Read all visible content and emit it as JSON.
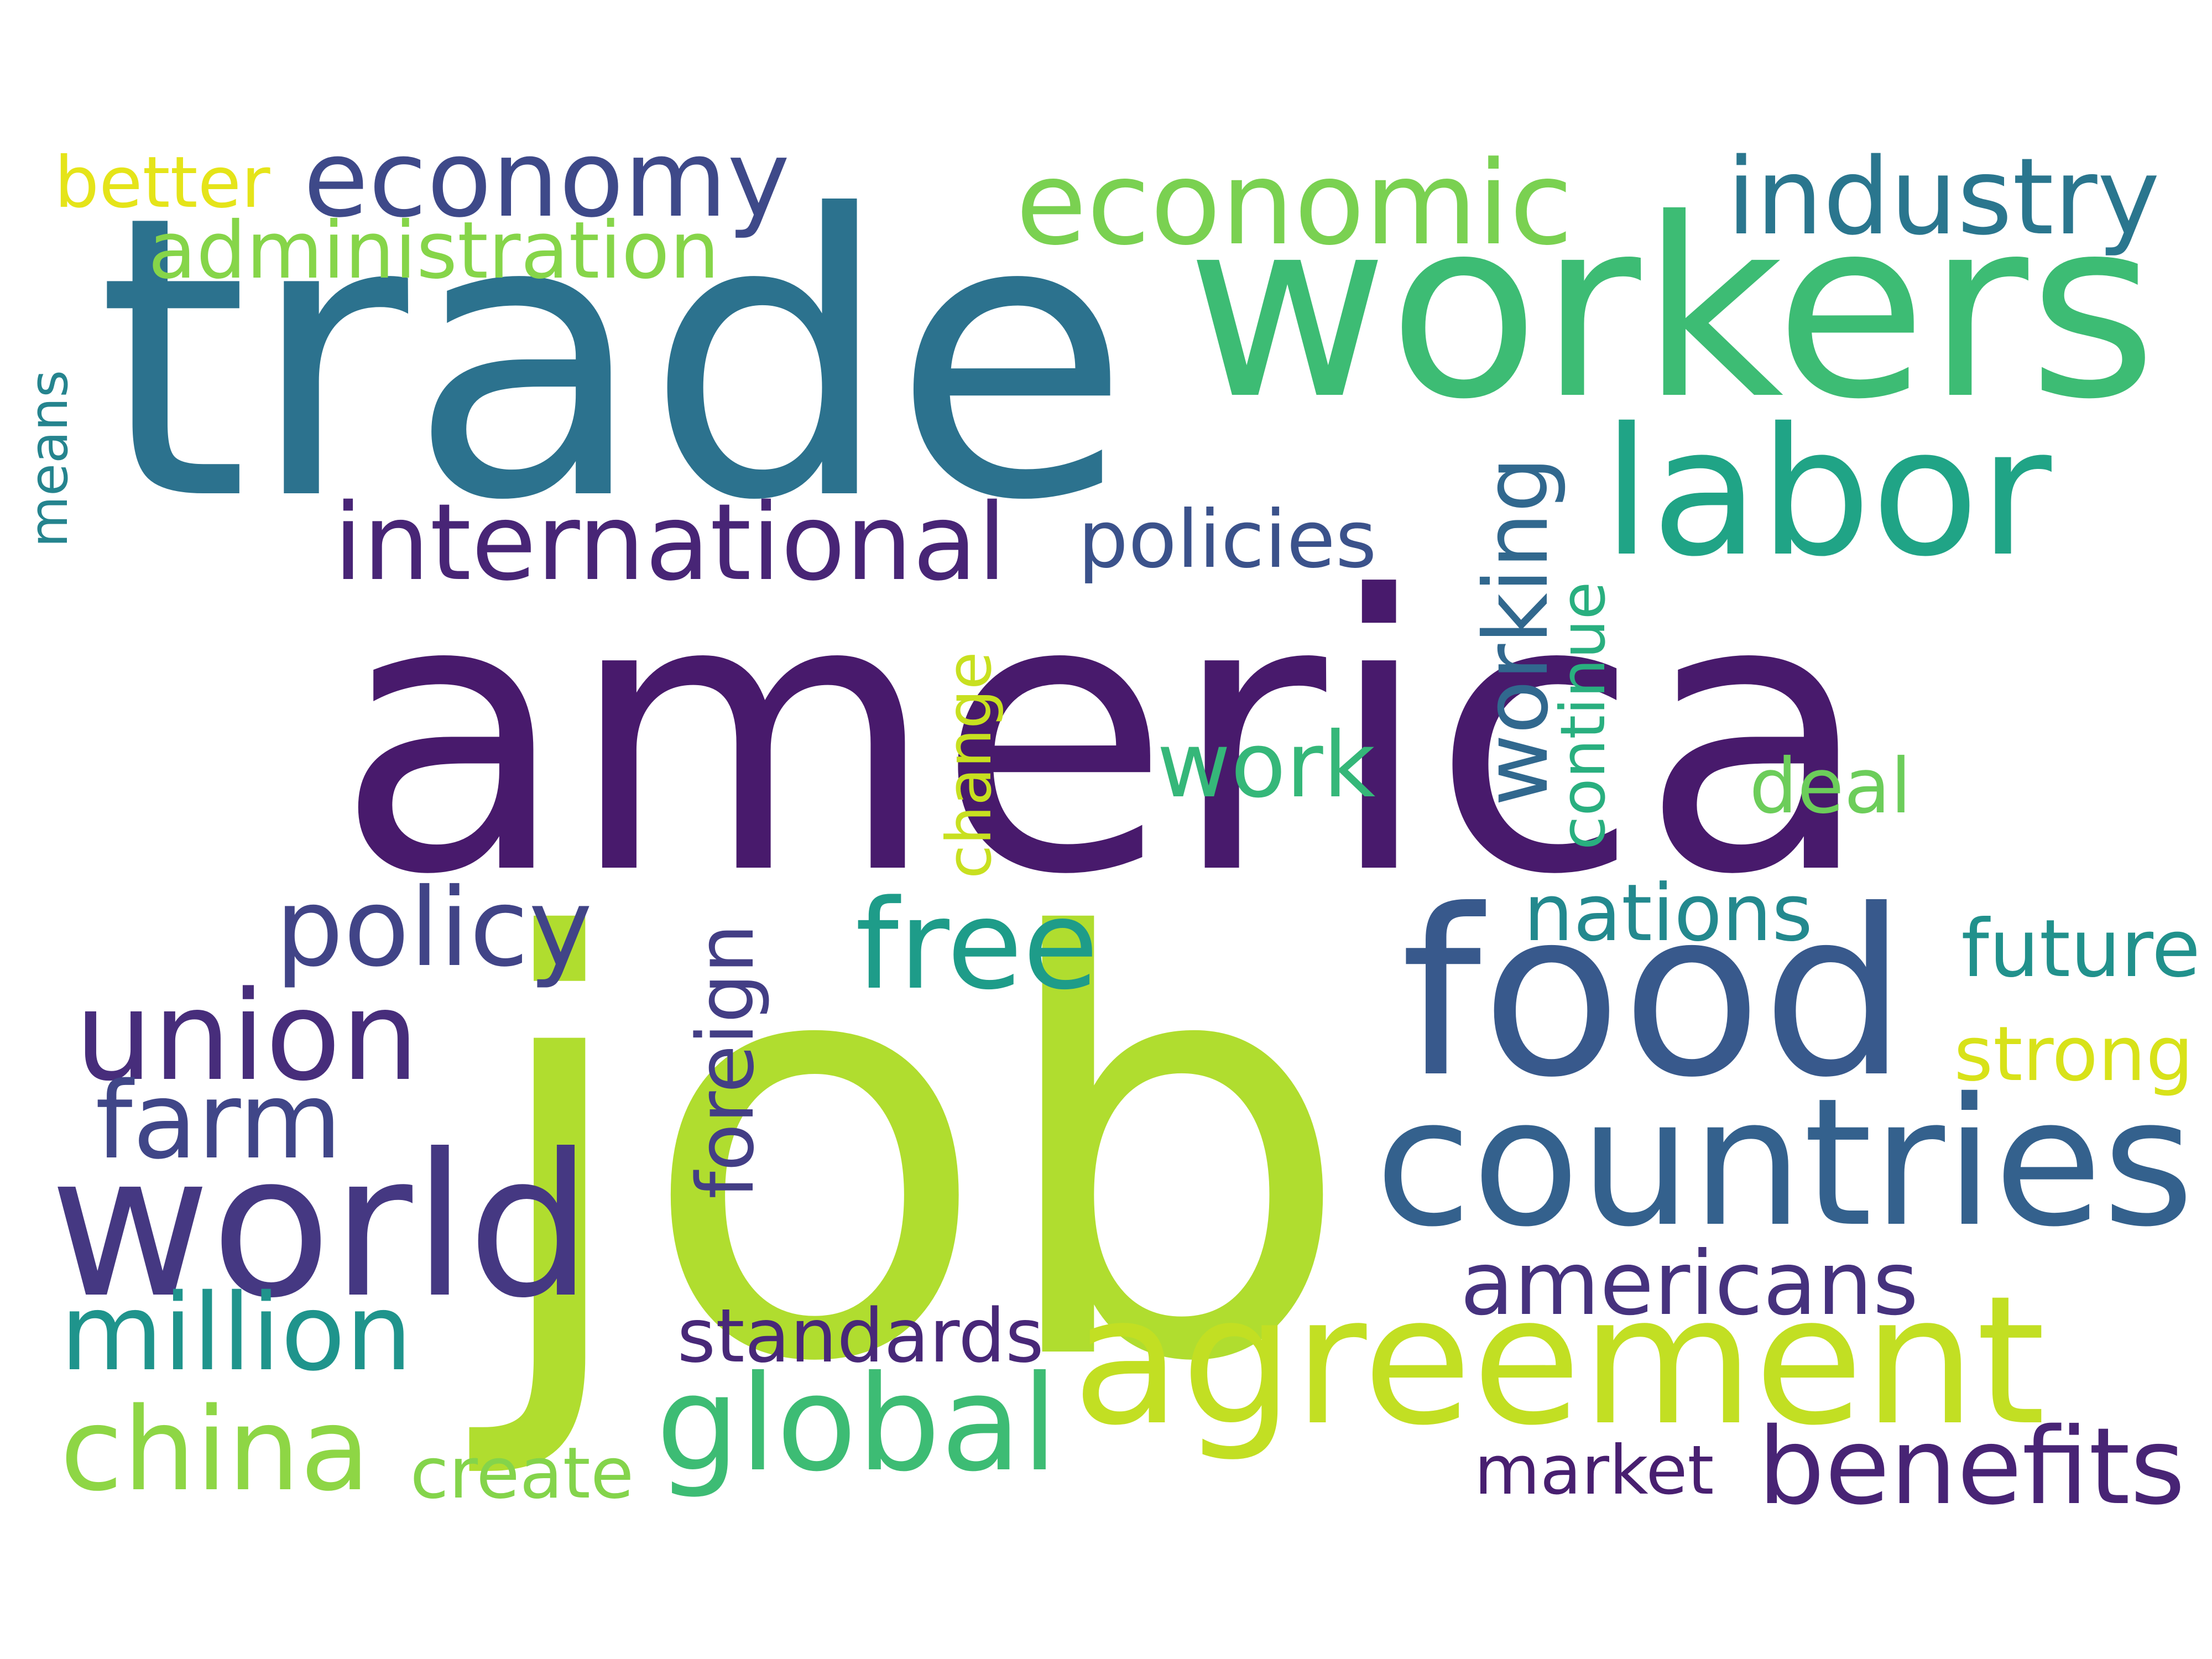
{
  "words": [
    {
      "text": "america",
      "color": "#481a6c"
    },
    {
      "text": "job",
      "color": "#b0dd2f"
    },
    {
      "text": "trade",
      "color": "#2c728e"
    },
    {
      "text": "workers",
      "color": "#3dbc74"
    },
    {
      "text": "food",
      "color": "#38598c"
    },
    {
      "text": "agreement",
      "color": "#c2df23"
    },
    {
      "text": "countries",
      "color": "#34618d"
    },
    {
      "text": "world",
      "color": "#453882"
    },
    {
      "text": "labor",
      "color": "#20a486"
    },
    {
      "text": "economy",
      "color": "#3e4989"
    },
    {
      "text": "economic",
      "color": "#7ad151"
    },
    {
      "text": "industry",
      "color": "#2a768e"
    },
    {
      "text": "international",
      "color": "#482576"
    },
    {
      "text": "union",
      "color": "#472d7b"
    },
    {
      "text": "policy",
      "color": "#414487"
    },
    {
      "text": "free",
      "color": "#1e9c89"
    },
    {
      "text": "farm",
      "color": "#404688"
    },
    {
      "text": "china",
      "color": "#8ed645"
    },
    {
      "text": "global",
      "color": "#3dbc74"
    },
    {
      "text": "foreign",
      "color": "#433e85"
    },
    {
      "text": "million",
      "color": "#1f948c"
    },
    {
      "text": "americans",
      "color": "#46327e"
    },
    {
      "text": "benefits",
      "color": "#482475"
    },
    {
      "text": "work",
      "color": "#35b779"
    },
    {
      "text": "working",
      "color": "#31688e"
    },
    {
      "text": "policies",
      "color": "#3b528b"
    },
    {
      "text": "continue",
      "color": "#29af7f"
    },
    {
      "text": "nations",
      "color": "#23898e"
    },
    {
      "text": "future",
      "color": "#21918c"
    },
    {
      "text": "strong",
      "color": "#d8e219"
    },
    {
      "text": "deal",
      "color": "#6ccd5a"
    },
    {
      "text": "standards",
      "color": "#482878"
    },
    {
      "text": "market",
      "color": "#481f70"
    },
    {
      "text": "create",
      "color": "#84d44b"
    },
    {
      "text": "change",
      "color": "#c8e020"
    },
    {
      "text": "administration",
      "color": "#86d549"
    },
    {
      "text": "better",
      "color": "#e5e419"
    },
    {
      "text": "means",
      "color": "#25848e"
    }
  ]
}
